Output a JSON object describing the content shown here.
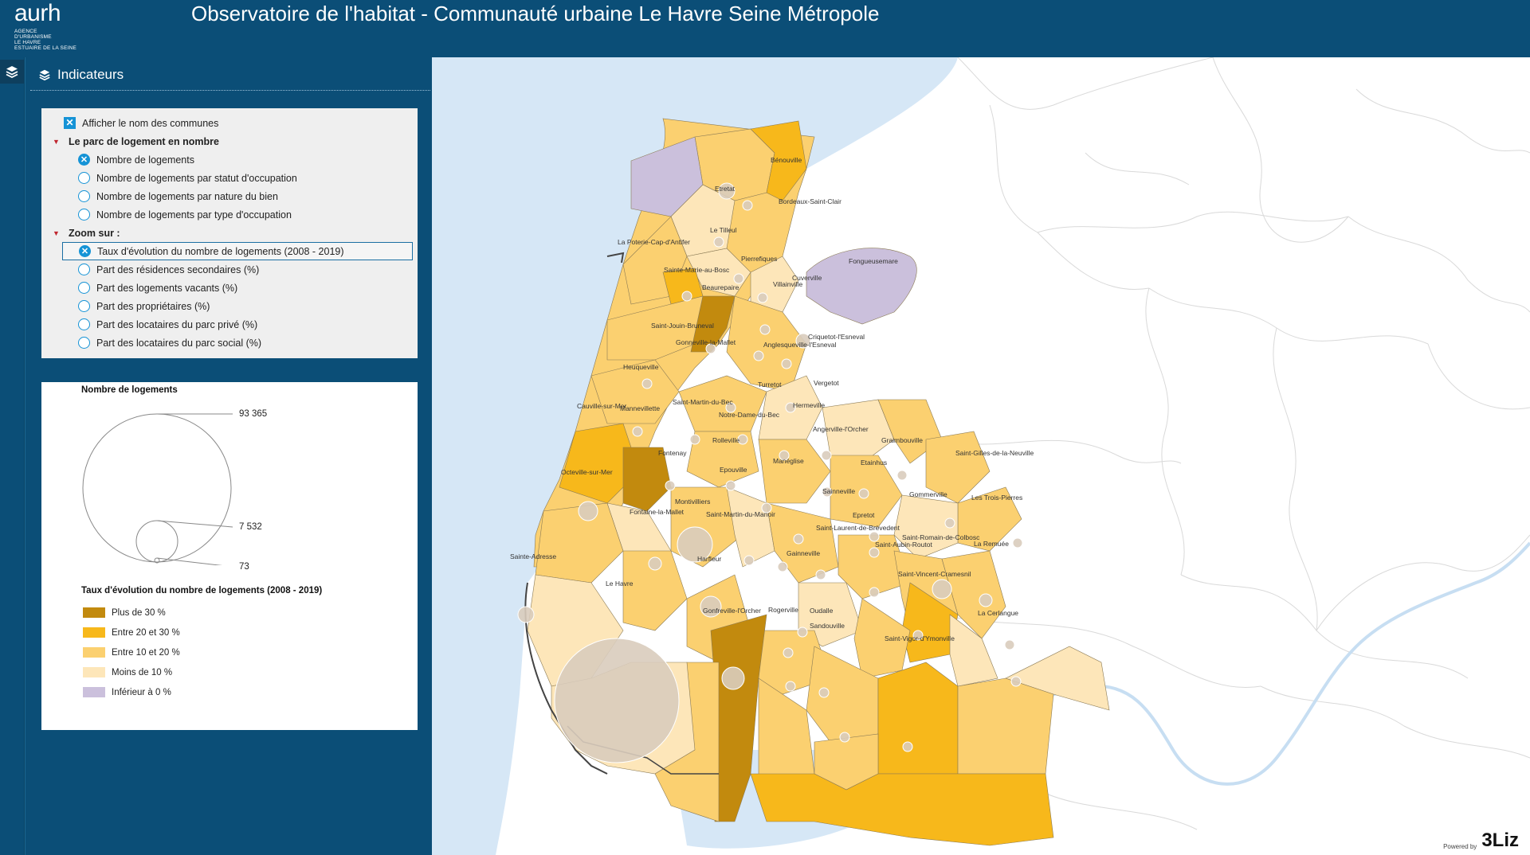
{
  "header": {
    "logo_main": "aurh",
    "logo_sub": [
      "AGENCE",
      "D'URBANISME",
      "LE HAVRE",
      "ESTUAIRE DE LA SEINE"
    ],
    "title": "Observatoire de l'habitat - Communauté urbaine Le Havre Seine Métropole"
  },
  "rail": {
    "icon": "layers-icon"
  },
  "panel": {
    "title": "Indicateurs",
    "icon": "layers-icon",
    "show_names": {
      "label": "Afficher le nom des communes",
      "checked": true
    },
    "group1": {
      "label": "Le parc de logement en nombre",
      "items": [
        {
          "label": "Nombre de logements",
          "selected": true
        },
        {
          "label": "Nombre de logements par statut d'occupation",
          "selected": false
        },
        {
          "label": "Nombre de logements par nature du bien",
          "selected": false
        },
        {
          "label": "Nombre de logements par type d'occupation",
          "selected": false
        }
      ]
    },
    "group2": {
      "label": "Zoom sur :",
      "items": [
        {
          "label": "Taux d'évolution du nombre de logements (2008 - 2019)",
          "selected": true
        },
        {
          "label": "Part des résidences secondaires (%)",
          "selected": false
        },
        {
          "label": "Part des logements vacants (%)",
          "selected": false
        },
        {
          "label": "Part des propriétaires (%)",
          "selected": false
        },
        {
          "label": "Part des locataires du parc privé (%)",
          "selected": false
        },
        {
          "label": "Part des locataires du parc social (%)",
          "selected": false
        }
      ]
    }
  },
  "legend": {
    "size_title": "Nombre de logements",
    "size_values": [
      "93 365",
      "7 532",
      "73"
    ],
    "color_title": "Taux d'évolution du nombre de logements (2008 - 2019)",
    "classes": [
      {
        "label": "Plus de 30 %",
        "color": "#c28a0e"
      },
      {
        "label": "Entre 20 et 30 %",
        "color": "#f7b81b"
      },
      {
        "label": "Entre 10 et 20 %",
        "color": "#fbd070"
      },
      {
        "label": "Moins de 10 %",
        "color": "#fde6b9"
      },
      {
        "label": "Inférieur à 0 %",
        "color": "#cbc0dc"
      }
    ]
  },
  "map": {
    "sea_color": "#d6e7f6",
    "communes": [
      "Bénouville",
      "Etretat",
      "Bordeaux-Saint-Clair",
      "Le Tilleul",
      "La Poterie-Cap-d'Antifer",
      "Pierrefiques",
      "Fongueusemare",
      "Sainte-Marie-au-Bosc",
      "Cuverville",
      "Beaurepaire",
      "Villainville",
      "Saint-Jouin-Bruneval",
      "Criquetot-l'Esneval",
      "Gonneville-la-Mallet",
      "Angerville-l'Orcher",
      "Heuqueville",
      "Turretot",
      "Vergetot",
      "Cauville-sur-Mer",
      "Mannevillette",
      "Saint-Martin-du-Bec",
      "Hermeville",
      "Notre-Dame-du-Bec",
      "Anglesqueville-l'Esneval",
      "Rolleville",
      "Fontenay",
      "Graimbouville",
      "Saint-Gilles-de-la-Neuville",
      "Manéglise",
      "Etainhus",
      "Octeville-sur-Mer",
      "Epouville",
      "Sainneville",
      "Gommerville",
      "Les Trois-Pierres",
      "Montivilliers",
      "Fontaine-la-Mallet",
      "Saint-Martin-du-Manoir",
      "Epretot",
      "Saint-Laurent-de-Brèvedent",
      "Saint-Romain-de-Colbosc",
      "Saint-Aubin-Routot",
      "La Remuée",
      "Sainte-Adresse",
      "Gainneville",
      "Harfleur",
      "Saint-Vincent-Cramesnil",
      "Le Havre",
      "Gonfreville-l'Orcher",
      "Rogerville",
      "Oudalle",
      "La Cerlangue",
      "Sandouville",
      "Saint-Vigor-d'Ymonville"
    ]
  },
  "credit": {
    "text": "Powered by",
    "logo": "3Liz"
  }
}
